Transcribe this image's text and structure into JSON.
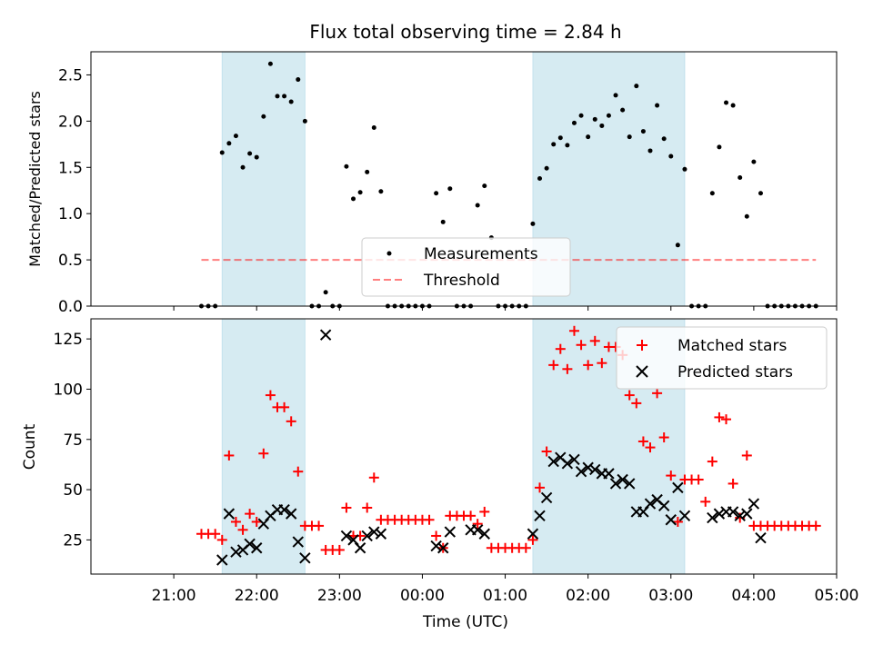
{
  "chart_data": [
    {
      "type": "scatter",
      "title": "Flux total observing time = 2.84 h",
      "ylabel": "Matched/Predicted stars",
      "ylim": [
        0,
        2.75
      ],
      "yticks": [
        "0.0",
        "0.5",
        "1.0",
        "1.5",
        "2.0",
        "2.5"
      ],
      "shaded_intervals": [
        [
          "21:35",
          "22:35"
        ],
        [
          "01:20",
          "03:10"
        ]
      ],
      "threshold": {
        "value": 0.5,
        "x_start": "21:20",
        "x_end": "04:45"
      },
      "legend": {
        "position": "lower-center",
        "entries": [
          "Measurements",
          "Threshold"
        ]
      },
      "series": [
        {
          "name": "Measurements",
          "color": "#000000",
          "x": [
            "21:20",
            "21:25",
            "21:30",
            "21:35",
            "21:40",
            "21:45",
            "21:50",
            "21:55",
            "22:00",
            "22:05",
            "22:10",
            "22:15",
            "22:20",
            "22:25",
            "22:30",
            "22:35",
            "22:40",
            "22:45",
            "22:50",
            "22:55",
            "23:00",
            "23:05",
            "23:10",
            "23:15",
            "23:20",
            "23:25",
            "23:30",
            "23:35",
            "23:40",
            "23:45",
            "23:50",
            "23:55",
            "00:00",
            "00:05",
            "00:10",
            "00:15",
            "00:20",
            "00:25",
            "00:30",
            "00:35",
            "00:40",
            "00:45",
            "00:50",
            "00:55",
            "01:00",
            "01:05",
            "01:10",
            "01:15",
            "01:20",
            "01:25",
            "01:30",
            "01:35",
            "01:40",
            "01:45",
            "01:50",
            "01:55",
            "02:00",
            "02:05",
            "02:10",
            "02:15",
            "02:20",
            "02:25",
            "02:30",
            "02:35",
            "02:40",
            "02:45",
            "02:50",
            "02:55",
            "03:00",
            "03:05",
            "03:10",
            "03:15",
            "03:20",
            "03:25",
            "03:30",
            "03:35",
            "03:40",
            "03:45",
            "03:50",
            "03:55",
            "04:00",
            "04:05",
            "04:10",
            "04:15",
            "04:20",
            "04:25",
            "04:30",
            "04:35",
            "04:40",
            "04:45"
          ],
          "y": [
            0,
            0,
            0,
            1.66,
            1.76,
            1.84,
            1.5,
            1.65,
            1.61,
            2.05,
            2.62,
            2.27,
            2.27,
            2.21,
            2.45,
            2.0,
            0,
            0,
            0.15,
            0,
            0,
            1.51,
            1.16,
            1.23,
            1.45,
            1.93,
            1.24,
            0,
            0,
            0,
            0,
            0,
            0,
            0,
            1.22,
            0.91,
            1.27,
            0,
            0,
            0,
            1.09,
            1.3,
            0.74,
            0,
            0,
            0,
            0,
            0,
            0.89,
            1.38,
            1.49,
            1.75,
            1.82,
            1.74,
            1.98,
            2.06,
            1.83,
            2.02,
            1.95,
            2.06,
            2.28,
            2.12,
            1.83,
            2.38,
            1.89,
            1.68,
            2.17,
            1.81,
            1.62,
            0.66,
            1.48,
            0,
            0,
            0,
            1.22,
            1.72,
            2.2,
            2.17,
            1.39,
            0.97,
            1.56,
            1.22,
            0,
            0,
            0,
            0,
            0,
            0,
            0,
            0
          ]
        }
      ]
    },
    {
      "type": "scatter",
      "xlabel": "Time (UTC)",
      "ylabel": "Count",
      "ylim": [
        8,
        135
      ],
      "xticks": [
        "21:00",
        "22:00",
        "23:00",
        "00:00",
        "01:00",
        "02:00",
        "03:00",
        "04:00",
        "05:00"
      ],
      "yticks": [
        "25",
        "50",
        "75",
        "100",
        "125"
      ],
      "shaded_intervals": [
        [
          "21:35",
          "22:35"
        ],
        [
          "01:20",
          "03:10"
        ]
      ],
      "legend": {
        "position": "upper-right",
        "entries": [
          "Matched stars",
          "Predicted stars"
        ]
      },
      "series": [
        {
          "name": "Matched stars",
          "color": "#ff0000",
          "marker": "+",
          "x": [
            "21:20",
            "21:25",
            "21:30",
            "21:35",
            "21:40",
            "21:45",
            "21:50",
            "21:55",
            "22:00",
            "22:05",
            "22:10",
            "22:15",
            "22:20",
            "22:25",
            "22:30",
            "22:35",
            "22:40",
            "22:45",
            "22:50",
            "22:55",
            "23:00",
            "23:05",
            "23:10",
            "23:15",
            "23:20",
            "23:25",
            "23:30",
            "23:35",
            "23:40",
            "23:45",
            "23:50",
            "23:55",
            "00:00",
            "00:05",
            "00:10",
            "00:15",
            "00:20",
            "00:25",
            "00:30",
            "00:35",
            "00:40",
            "00:45",
            "00:50",
            "00:55",
            "01:00",
            "01:05",
            "01:10",
            "01:15",
            "01:20",
            "01:25",
            "01:30",
            "01:35",
            "01:40",
            "01:45",
            "01:50",
            "01:55",
            "02:00",
            "02:05",
            "02:10",
            "02:15",
            "02:20",
            "02:25",
            "02:30",
            "02:35",
            "02:40",
            "02:45",
            "02:50",
            "02:55",
            "03:00",
            "03:05",
            "03:10",
            "03:15",
            "03:20",
            "03:25",
            "03:30",
            "03:35",
            "03:40",
            "03:45",
            "03:50",
            "03:55",
            "04:00",
            "04:05",
            "04:10",
            "04:15",
            "04:20",
            "04:25",
            "04:30",
            "04:35",
            "04:40",
            "04:45"
          ],
          "y": [
            28,
            28,
            28,
            25,
            67,
            34,
            30,
            38,
            34,
            68,
            97,
            91,
            91,
            84,
            59,
            32,
            32,
            32,
            20,
            20,
            20,
            41,
            27,
            27,
            41,
            56,
            35,
            35,
            35,
            35,
            35,
            35,
            35,
            35,
            27,
            21,
            37,
            37,
            37,
            37,
            33,
            39,
            21,
            21,
            21,
            21,
            21,
            21,
            25,
            51,
            69,
            112,
            120,
            110,
            129,
            122,
            112,
            124,
            113,
            121,
            121,
            117,
            97,
            93,
            74,
            71,
            98,
            76,
            57,
            34,
            55,
            55,
            55,
            44,
            64,
            86,
            85,
            53,
            36,
            67,
            32,
            32,
            32,
            32,
            32,
            32,
            32,
            32,
            32,
            32
          ]
        },
        {
          "name": "Predicted stars",
          "color": "#000000",
          "marker": "x",
          "x": [
            "21:35",
            "21:40",
            "21:45",
            "21:50",
            "21:55",
            "22:00",
            "22:05",
            "22:10",
            "22:15",
            "22:20",
            "22:25",
            "22:30",
            "22:35",
            "22:50",
            "23:05",
            "23:10",
            "23:15",
            "23:20",
            "23:25",
            "23:30",
            "00:10",
            "00:15",
            "00:20",
            "00:35",
            "00:40",
            "00:45",
            "01:20",
            "01:25",
            "01:30",
            "01:35",
            "01:40",
            "01:45",
            "01:50",
            "01:55",
            "02:00",
            "02:05",
            "02:10",
            "02:15",
            "02:20",
            "02:25",
            "02:30",
            "02:35",
            "02:40",
            "02:45",
            "02:50",
            "02:55",
            "03:00",
            "03:05",
            "03:10",
            "03:30",
            "03:35",
            "03:40",
            "03:45",
            "03:50",
            "03:55",
            "04:00",
            "04:05"
          ],
          "y": [
            15,
            38,
            19,
            20,
            23,
            21,
            33,
            37,
            40,
            40,
            38,
            24,
            16,
            127,
            27,
            25,
            21,
            27,
            29,
            28,
            22,
            21,
            29,
            30,
            30,
            28,
            28,
            37,
            46,
            64,
            66,
            63,
            65,
            59,
            61,
            60,
            58,
            58,
            53,
            55,
            53,
            39,
            39,
            43,
            45,
            42,
            35,
            51,
            37,
            36,
            38,
            39,
            39,
            37,
            38,
            43,
            26
          ]
        }
      ]
    }
  ]
}
